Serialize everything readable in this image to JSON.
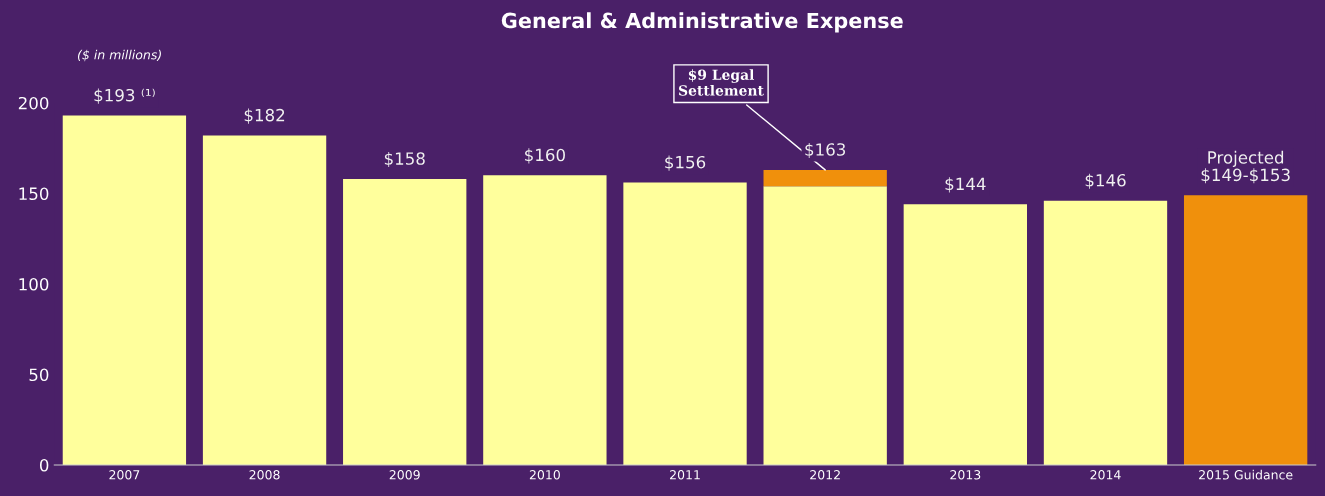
{
  "chart_data": {
    "type": "bar",
    "title": "General & Administrative Expense",
    "categories": [
      "2007",
      "2008",
      "2009",
      "2010",
      "2011",
      "2012",
      "2013",
      "2014",
      "2015 Guidance"
    ],
    "stacked": true,
    "series": [
      {
        "color": "#ffff9c",
        "values": [
          193,
          182,
          158,
          160,
          156,
          154,
          144,
          146,
          null
        ]
      },
      {
        "color": "#f0900c",
        "values": [
          null,
          null,
          null,
          null,
          null,
          9,
          null,
          null,
          149
        ]
      }
    ],
    "totals": [
      "$193 ⁽¹⁾",
      "$182",
      "$158",
      "$160",
      "$156",
      "$163",
      "$144",
      "$146",
      "Projected\n$149-$153"
    ],
    "ylim": [
      0,
      200
    ],
    "yticks": [
      0,
      50,
      100,
      150,
      200
    ],
    "annotations": [
      "($ in millions)",
      {
        "text": "$9 Legal\nSettlement",
        "x": "2012",
        "y": 163
      }
    ],
    "grid": false,
    "legend": false
  }
}
